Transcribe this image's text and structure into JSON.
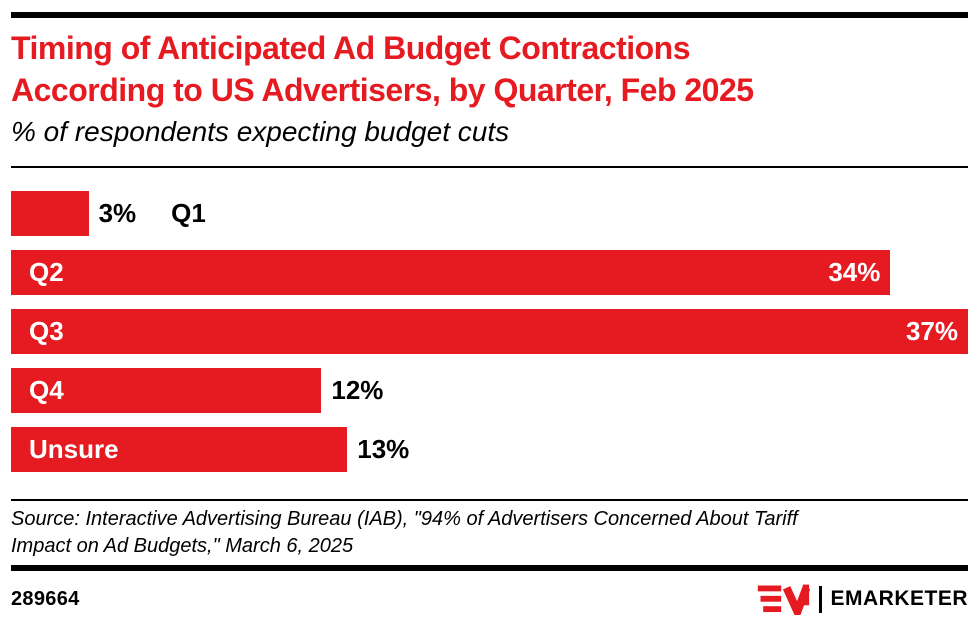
{
  "colors": {
    "accent_red": "#e61b22",
    "text_black": "#000000",
    "inside_label_white": "#ffffff",
    "rule_black": "#000000"
  },
  "header": {
    "title_line1": "Timing of Anticipated Ad Budget Contractions",
    "title_line2": "According to US Advertisers, by Quarter, Feb 2025",
    "subtitle": "% of respondents expecting budget cuts"
  },
  "chart_data": {
    "type": "bar",
    "orientation": "horizontal",
    "title": "Timing of Anticipated Ad Budget Contractions According to US Advertisers, by Quarter, Feb 2025",
    "subtitle_note": "% of respondents expecting budget cuts",
    "categories": [
      "Q1",
      "Q2",
      "Q3",
      "Q4",
      "Unsure"
    ],
    "values": [
      3,
      34,
      37,
      12,
      13
    ],
    "value_labels": [
      "3%",
      "34%",
      "37%",
      "12%",
      "13%"
    ],
    "unit": "% of respondents",
    "xlim": [
      0,
      37
    ],
    "grid": false,
    "legend": false,
    "bar_color": "#e61b22",
    "label_placements": [
      "outside",
      "inside",
      "inside",
      "inside",
      "inside"
    ],
    "value_placements": [
      "outside",
      "inside",
      "inside",
      "outside",
      "outside"
    ]
  },
  "source": {
    "line1": "Source: Interactive Advertising Bureau (IAB), \"94% of Advertisers Concerned About Tariff",
    "line2": "Impact on Ad Budgets,\" March 6, 2025"
  },
  "footer": {
    "chart_id": "289664",
    "brand_wordmark": "EMARKETER",
    "logo_monogram": "EM"
  }
}
